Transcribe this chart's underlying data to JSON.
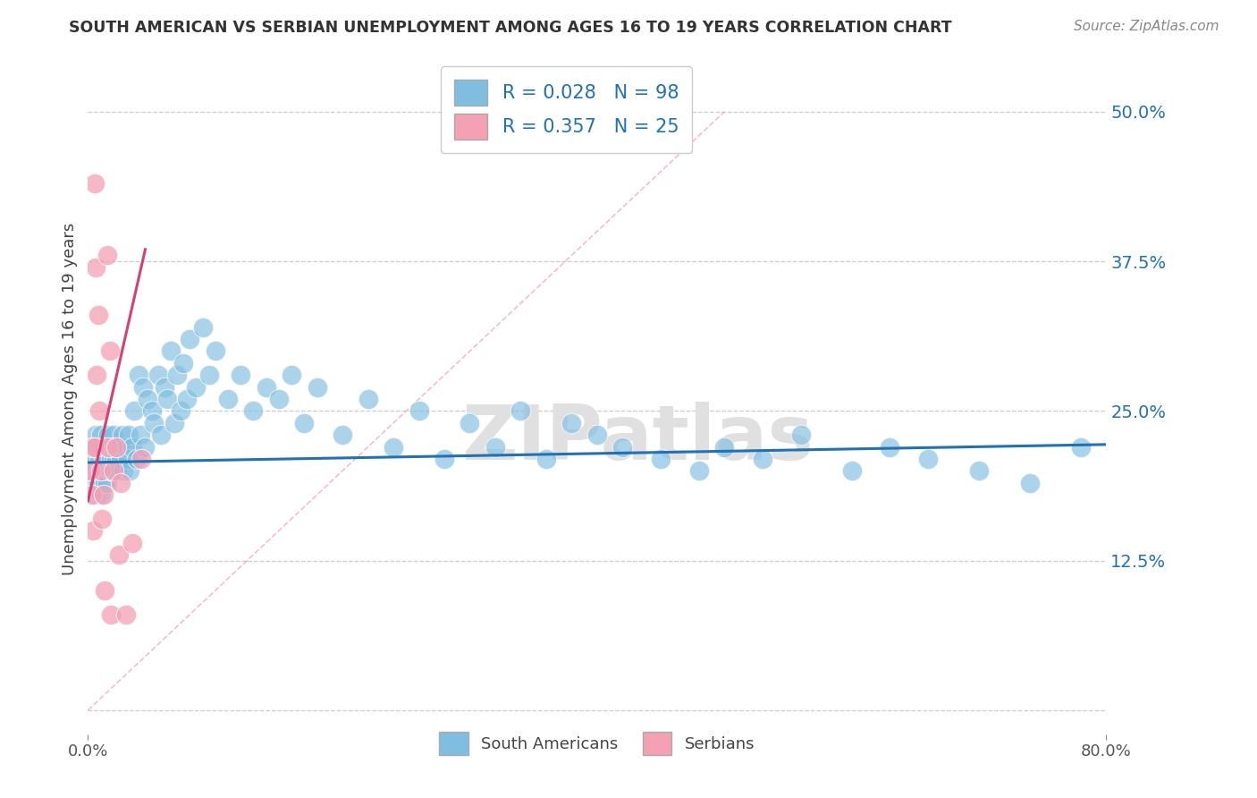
{
  "title": "SOUTH AMERICAN VS SERBIAN UNEMPLOYMENT AMONG AGES 16 TO 19 YEARS CORRELATION CHART",
  "source": "Source: ZipAtlas.com",
  "ylabel": "Unemployment Among Ages 16 to 19 years",
  "xlim": [
    0.0,
    0.8
  ],
  "ylim": [
    -0.02,
    0.54
  ],
  "south_americans_R": 0.028,
  "south_americans_N": 98,
  "serbians_R": 0.357,
  "serbians_N": 25,
  "blue_color": "#7fbee0",
  "pink_color": "#f4a0b5",
  "blue_line_color": "#2171b5",
  "pink_line_color": "#d44070",
  "dashed_line_color": "#f4a0b5",
  "grid_color": "#cccccc",
  "watermark": "ZIPatlas",
  "ytick_vals": [
    0.0,
    0.125,
    0.25,
    0.375,
    0.5
  ],
  "ytick_labels": [
    "",
    "12.5%",
    "25.0%",
    "37.5%",
    "50.0%"
  ],
  "xtick_vals": [
    0.0,
    0.8
  ],
  "xtick_labels": [
    "0.0%",
    "80.0%"
  ],
  "sa_x": [
    0.003,
    0.004,
    0.005,
    0.005,
    0.006,
    0.006,
    0.007,
    0.007,
    0.008,
    0.008,
    0.009,
    0.009,
    0.01,
    0.01,
    0.01,
    0.01,
    0.012,
    0.012,
    0.013,
    0.013,
    0.014,
    0.014,
    0.015,
    0.015,
    0.016,
    0.017,
    0.018,
    0.018,
    0.019,
    0.02,
    0.02,
    0.021,
    0.022,
    0.023,
    0.025,
    0.026,
    0.027,
    0.028,
    0.03,
    0.031,
    0.032,
    0.033,
    0.035,
    0.036,
    0.038,
    0.04,
    0.041,
    0.043,
    0.045,
    0.047,
    0.05,
    0.052,
    0.055,
    0.057,
    0.06,
    0.062,
    0.065,
    0.068,
    0.07,
    0.073,
    0.075,
    0.078,
    0.08,
    0.085,
    0.09,
    0.095,
    0.1,
    0.11,
    0.12,
    0.13,
    0.14,
    0.15,
    0.16,
    0.17,
    0.18,
    0.2,
    0.22,
    0.24,
    0.26,
    0.28,
    0.3,
    0.32,
    0.34,
    0.36,
    0.38,
    0.4,
    0.42,
    0.45,
    0.48,
    0.5,
    0.53,
    0.56,
    0.6,
    0.63,
    0.66,
    0.7,
    0.74,
    0.78
  ],
  "sa_y": [
    0.21,
    0.2,
    0.22,
    0.19,
    0.23,
    0.18,
    0.21,
    0.2,
    0.22,
    0.19,
    0.2,
    0.21,
    0.22,
    0.2,
    0.18,
    0.23,
    0.21,
    0.2,
    0.19,
    0.22,
    0.2,
    0.21,
    0.22,
    0.19,
    0.23,
    0.2,
    0.21,
    0.22,
    0.2,
    0.21,
    0.23,
    0.22,
    0.21,
    0.2,
    0.22,
    0.21,
    0.23,
    0.2,
    0.22,
    0.21,
    0.23,
    0.2,
    0.22,
    0.25,
    0.21,
    0.28,
    0.23,
    0.27,
    0.22,
    0.26,
    0.25,
    0.24,
    0.28,
    0.23,
    0.27,
    0.26,
    0.3,
    0.24,
    0.28,
    0.25,
    0.29,
    0.26,
    0.31,
    0.27,
    0.32,
    0.28,
    0.3,
    0.26,
    0.28,
    0.25,
    0.27,
    0.26,
    0.28,
    0.24,
    0.27,
    0.23,
    0.26,
    0.22,
    0.25,
    0.21,
    0.24,
    0.22,
    0.25,
    0.21,
    0.24,
    0.23,
    0.22,
    0.21,
    0.2,
    0.22,
    0.21,
    0.23,
    0.2,
    0.22,
    0.21,
    0.2,
    0.19,
    0.22
  ],
  "sr_x": [
    0.002,
    0.003,
    0.003,
    0.004,
    0.005,
    0.005,
    0.006,
    0.007,
    0.008,
    0.009,
    0.01,
    0.011,
    0.012,
    0.013,
    0.015,
    0.016,
    0.017,
    0.018,
    0.02,
    0.022,
    0.024,
    0.026,
    0.03,
    0.035,
    0.042
  ],
  "sr_y": [
    0.2,
    0.18,
    0.22,
    0.15,
    0.44,
    0.22,
    0.37,
    0.28,
    0.33,
    0.25,
    0.2,
    0.16,
    0.18,
    0.1,
    0.38,
    0.22,
    0.3,
    0.08,
    0.2,
    0.22,
    0.13,
    0.19,
    0.08,
    0.14,
    0.21
  ]
}
